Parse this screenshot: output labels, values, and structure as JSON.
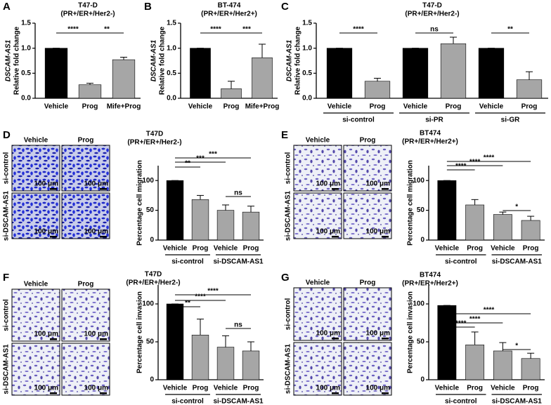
{
  "chart_data": [
    {
      "type": "bar",
      "panel": "A",
      "title": "T47-D",
      "subtitle": "(PR+/ER+/Her2-)",
      "ylabel": [
        "DSCAM-AS1",
        "Relative fold change"
      ],
      "categories": [
        "Vehicle",
        "Prog",
        "Mife+Prog"
      ],
      "values": [
        1.0,
        0.27,
        0.77
      ],
      "errors": [
        0,
        0.03,
        0.05
      ],
      "colors": [
        "#000000",
        "#a6a6a6",
        "#a6a6a6"
      ],
      "ylim": [
        0,
        1.5
      ],
      "yticks": [
        {
          "value": 0,
          "label": "0.0"
        },
        0.5,
        {
          "value": 1,
          "label": "1.0"
        },
        1.5
      ],
      "annotations": [
        "****",
        "**"
      ]
    },
    {
      "type": "bar",
      "panel": "B",
      "title": "BT-474",
      "subtitle": "(PR+/ER+/Her2+)",
      "ylabel": [
        "DSCAM-AS1",
        "Relative fold change"
      ],
      "categories": [
        "Vehicle",
        "Prog",
        "Mife+Prog"
      ],
      "values": [
        1.0,
        0.19,
        0.81
      ],
      "errors": [
        0,
        0.15,
        0.27
      ],
      "colors": [
        "#000000",
        "#a6a6a6",
        "#a6a6a6"
      ],
      "ylim": [
        0,
        1.5
      ],
      "yticks": [
        {
          "value": 0,
          "label": "0.0"
        },
        0.5,
        {
          "value": 1,
          "label": "1.0"
        },
        1.5
      ],
      "annotations": [
        "****",
        "***"
      ]
    },
    {
      "type": "bar",
      "panel": "C",
      "title": "T47-D",
      "subtitle": "(PR+/ER+/Her2-)",
      "ylabel": [
        "DSCAM-AS1",
        "Relative fold change"
      ],
      "categories": [
        "Vehicle",
        "Prog",
        "Vehicle",
        "Prog",
        "Vehicle",
        "Prog"
      ],
      "groups": [
        "si-control",
        "si-PR",
        "si-GR"
      ],
      "values": [
        1.0,
        0.34,
        1.0,
        1.09,
        1.0,
        0.37
      ],
      "errors": [
        0,
        0.06,
        0,
        0.13,
        0,
        0.16
      ],
      "colors": [
        "#000000",
        "#a6a6a6",
        "#000000",
        "#a6a6a6",
        "#000000",
        "#a6a6a6"
      ],
      "ylim": [
        0,
        1.5
      ],
      "yticks": [
        {
          "value": 0,
          "label": "0.0"
        },
        0.5,
        {
          "value": 1,
          "label": "1.0"
        },
        1.5
      ],
      "annotations": [
        "****",
        "ns",
        "**"
      ]
    },
    {
      "type": "bar",
      "panel": "D",
      "title": "T47D",
      "subtitle": "(PR+/ER+/Her2-)",
      "ylabel": [
        "Percentage cell migration"
      ],
      "images": {
        "columns": [
          "Vehicle",
          "Prog"
        ],
        "rows": [
          "si-control",
          "si-DSCAM-AS1"
        ],
        "scale": "100 μm"
      },
      "categories": [
        "Vehicle",
        "Prog",
        "Vehicle",
        "Prog"
      ],
      "groups": [
        "si-control",
        "si-DSCAM-AS1"
      ],
      "values": [
        100,
        68,
        50,
        47
      ],
      "errors": [
        0,
        7,
        9,
        10
      ],
      "colors": [
        "#000000",
        "#a6a6a6",
        "#a6a6a6",
        "#a6a6a6"
      ],
      "ylim": [
        0,
        125
      ],
      "yticks": [
        0,
        50,
        100
      ],
      "annotations": [
        "**",
        "***",
        "***",
        "ns"
      ]
    },
    {
      "type": "bar",
      "panel": "E",
      "title": "BT474",
      "subtitle": "(PR+/ER+/Her2+)",
      "ylabel": [
        "Percentage cell migration"
      ],
      "images": {
        "columns": [
          "Vehicle",
          "Prog"
        ],
        "rows": [
          "si-control",
          "si-DSCAM-AS1"
        ],
        "scale": "100 μm"
      },
      "categories": [
        "Vehicle",
        "Prog",
        "Vehicle",
        "Prog"
      ],
      "groups": [
        "si-control",
        "si-DSCAM-AS1"
      ],
      "values": [
        100,
        59,
        43,
        33
      ],
      "errors": [
        0,
        9,
        4,
        7
      ],
      "colors": [
        "#000000",
        "#a6a6a6",
        "#a6a6a6",
        "#a6a6a6"
      ],
      "ylim": [
        0,
        125
      ],
      "yticks": [
        0,
        50,
        100
      ],
      "annotations": [
        "****",
        "****",
        "****",
        "*"
      ]
    },
    {
      "type": "bar",
      "panel": "F",
      "title": "T47D",
      "subtitle": "(PR+/ER+/Her2-)",
      "ylabel": [
        "Percentage cell invasion"
      ],
      "images": {
        "columns": [
          "Vehicle",
          "Prog"
        ],
        "rows": [
          "si-control",
          "si-DSCAM-AS1"
        ],
        "scale": "100 μm"
      },
      "categories": [
        "Vehicle",
        "Prog",
        "Vehicle",
        "Prog"
      ],
      "groups": [
        "si-control",
        "si-DSCAM-AS1"
      ],
      "values": [
        100,
        59,
        43,
        38
      ],
      "errors": [
        0,
        21,
        15,
        12
      ],
      "colors": [
        "#000000",
        "#a6a6a6",
        "#a6a6a6",
        "#a6a6a6"
      ],
      "ylim": [
        0,
        125
      ],
      "yticks": [
        0,
        50,
        100
      ],
      "annotations": [
        "**",
        "****",
        "****",
        "ns"
      ]
    },
    {
      "type": "bar",
      "panel": "G",
      "title": "BT474",
      "subtitle": "(PR+/ER+/Her2+)",
      "ylabel": [
        "Percentage cell invasion"
      ],
      "images": {
        "columns": [
          "Vehicle",
          "Prog"
        ],
        "rows": [
          "si-control",
          "si-DSCAM-AS1"
        ],
        "scale": "100 μm"
      },
      "categories": [
        "Vehicle",
        "Prog",
        "Vehicle",
        "Prog"
      ],
      "groups": [
        "si-control",
        "si-DSCAM-AS1"
      ],
      "values": [
        98,
        46,
        38,
        28
      ],
      "errors": [
        0,
        17,
        11,
        7
      ],
      "colors": [
        "#000000",
        "#a6a6a6",
        "#a6a6a6",
        "#a6a6a6"
      ],
      "ylim": [
        0,
        125
      ],
      "yticks": [
        0,
        50,
        100
      ],
      "annotations": [
        "****",
        "****",
        "****",
        "*"
      ]
    }
  ]
}
